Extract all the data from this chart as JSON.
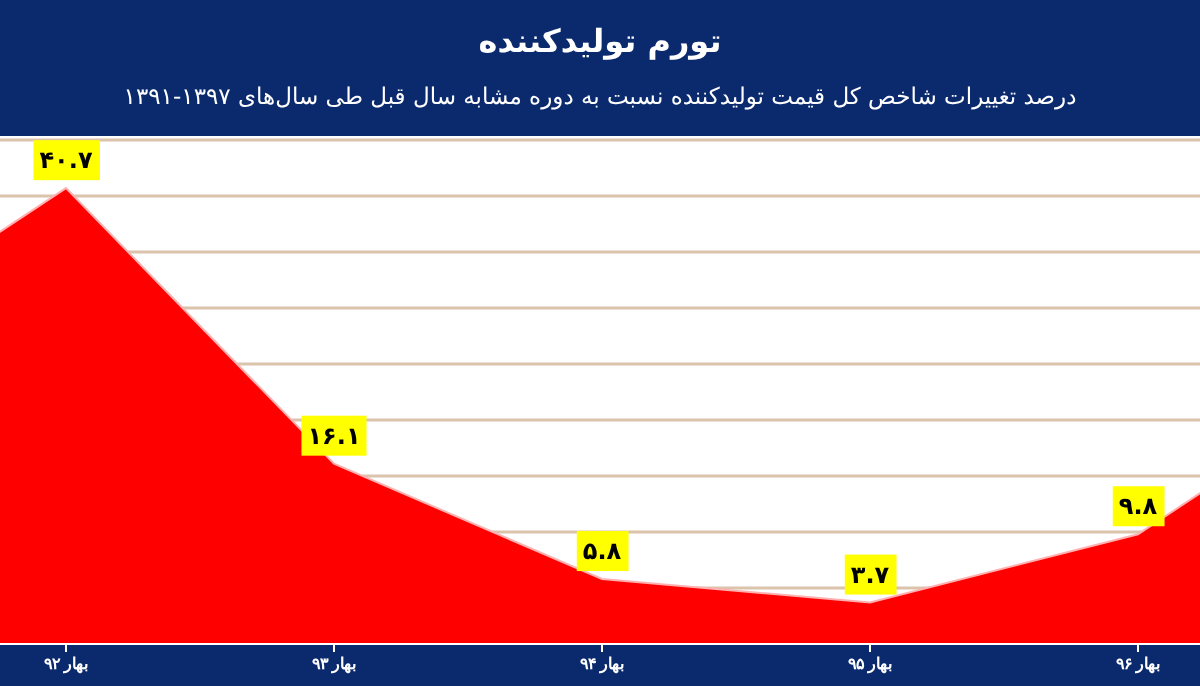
{
  "chart_data": {
    "type": "area",
    "title": "تورم تولیدکننده",
    "subtitle": "درصد تغییرات شاخص کل قیمت تولیدکننده نسبت به دوره مشابه سال قبل طی سال‌های ۱۳۹۷-۱۳۹۱",
    "categories": [
      null,
      "بهار ۹۲",
      "بهار ۹۳",
      "بهار ۹۴",
      "بهار ۹۵",
      "بهار ۹۶",
      null
    ],
    "values": [
      24.9,
      40.7,
      16.1,
      5.8,
      3.7,
      9.8,
      25.6
    ],
    "value_labels": [
      null,
      "۴۰.۷",
      "۱۶.۱",
      "۵.۸",
      "۳.۷",
      "۹.۸",
      null
    ],
    "color": "#ff0000",
    "ylim": [
      0,
      45
    ],
    "yticks": [
      {
        "value": 0,
        "label": null
      },
      {
        "value": 5,
        "label": null
      },
      {
        "value": 10,
        "label": null
      },
      {
        "value": 15,
        "label": null
      },
      {
        "value": 20,
        "label": null
      },
      {
        "value": 25,
        "label": null
      },
      {
        "value": 30,
        "label": null
      },
      {
        "value": 35,
        "label": null
      },
      {
        "value": 40,
        "label": null
      },
      {
        "value": 45,
        "label": null
      }
    ],
    "tick_labels": "x",
    "grid": "y",
    "marker": "none"
  }
}
